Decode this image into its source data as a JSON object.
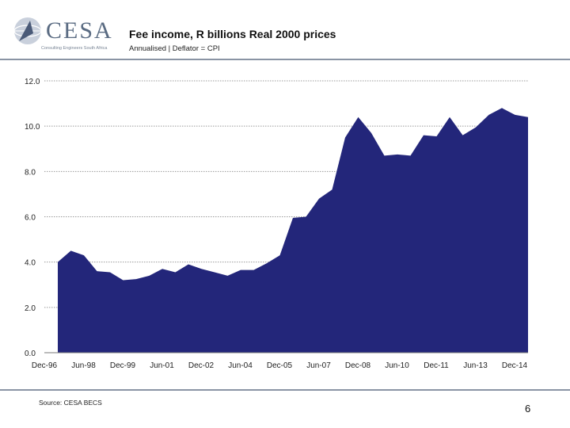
{
  "header": {
    "logo_text": "CESA",
    "logo_tagline": "Consulting Engineers South Africa",
    "title": "Fee income, R billions Real 2000 prices",
    "subtitle": "Annualised | Deflator = CPI"
  },
  "footer": {
    "source": "Source: CESA BECS",
    "page_number": "6"
  },
  "colors": {
    "area_fill": "#23267a",
    "grid": "#9a9a9a",
    "rule": "#8a94a4"
  },
  "chart_data": {
    "type": "area",
    "title": "Fee income, R billions Real 2000 prices",
    "subtitle": "Annualised | Deflator = CPI",
    "xlabel": "",
    "ylabel": "",
    "ylim": [
      0,
      12
    ],
    "yticks": [
      "0.0",
      "2.0",
      "4.0",
      "6.0",
      "8.0",
      "10.0",
      "12.0"
    ],
    "grid": true,
    "x_tick_labels": [
      "Dec-96",
      "Jun-98",
      "Dec-99",
      "Jun-01",
      "Dec-02",
      "Jun-04",
      "Dec-05",
      "Jun-07",
      "Dec-08",
      "Jun-10",
      "Dec-11",
      "Jun-13",
      "Dec-14"
    ],
    "x_start": "Dec-96",
    "x_step_months": 6,
    "x_count": 37,
    "x_points": [
      "Jun-97",
      "Dec-97",
      "Jun-98",
      "Dec-98",
      "Jun-99",
      "Dec-99",
      "Jun-00",
      "Dec-00",
      "Jun-01",
      "Dec-01",
      "Jun-02",
      "Dec-02",
      "Jun-03",
      "Dec-03",
      "Jun-04",
      "Dec-04",
      "Jun-05",
      "Dec-05",
      "Jun-06",
      "Dec-06",
      "Jun-07",
      "Dec-07",
      "Jun-08",
      "Dec-08",
      "Jun-09",
      "Dec-09",
      "Jun-10",
      "Dec-10",
      "Jun-11",
      "Dec-11",
      "Jun-12",
      "Dec-12",
      "Jun-13",
      "Dec-13",
      "Jun-14",
      "Dec-14",
      "Jun-15"
    ],
    "series": [
      {
        "name": "Fee income",
        "values": [
          4.0,
          4.5,
          4.3,
          3.6,
          3.55,
          3.2,
          3.25,
          3.4,
          3.7,
          3.55,
          3.9,
          3.7,
          3.55,
          3.4,
          3.65,
          3.65,
          3.95,
          4.3,
          5.95,
          6.0,
          6.8,
          7.2,
          9.5,
          10.4,
          9.7,
          8.7,
          8.75,
          8.7,
          9.6,
          9.55,
          10.4,
          9.6,
          9.95,
          10.5,
          10.8,
          10.5,
          10.4
        ]
      }
    ]
  }
}
